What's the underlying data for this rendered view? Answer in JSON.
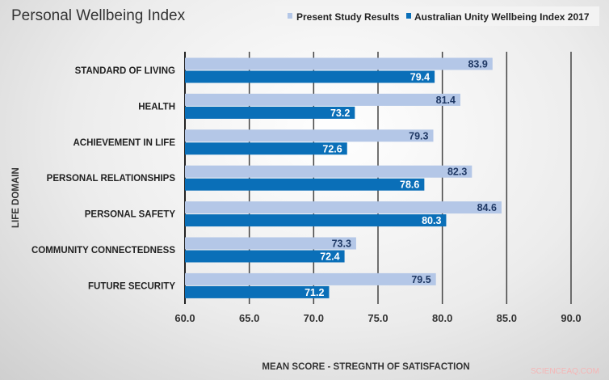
{
  "chart_data": {
    "type": "bar",
    "orientation": "horizontal",
    "title": "Personal Wellbeing Index",
    "xlabel": "MEAN SCORE - STREGNTH OF SATISFACTION",
    "ylabel": "LIFE DOMAIN",
    "xlim": [
      60,
      90
    ],
    "xticks": [
      "60.0",
      "65.0",
      "70.0",
      "75.0",
      "80.0",
      "85.0",
      "90.0"
    ],
    "grid": true,
    "legend_position": "top-right",
    "categories": [
      "STANDARD OF LIVING",
      "HEALTH",
      "ACHIEVEMENT IN LIFE",
      "PERSONAL RELATIONSHIPS",
      "PERSONAL SAFETY",
      "COMMUNITY CONNECTEDNESS",
      "FUTURE SECURITY"
    ],
    "series": [
      {
        "name": "Present Study Results",
        "color": "#b4c7e7",
        "label_color": "#1f3864",
        "values": [
          83.9,
          81.4,
          79.3,
          82.3,
          84.6,
          73.3,
          79.5
        ]
      },
      {
        "name": "Australian Unity Wellbeing Index 2017",
        "color": "#0a6fb8",
        "label_color": "#ffffff",
        "values": [
          79.4,
          73.2,
          72.6,
          78.6,
          80.3,
          72.4,
          71.2
        ]
      }
    ]
  },
  "watermark": "SCIENCEAQ.COM"
}
